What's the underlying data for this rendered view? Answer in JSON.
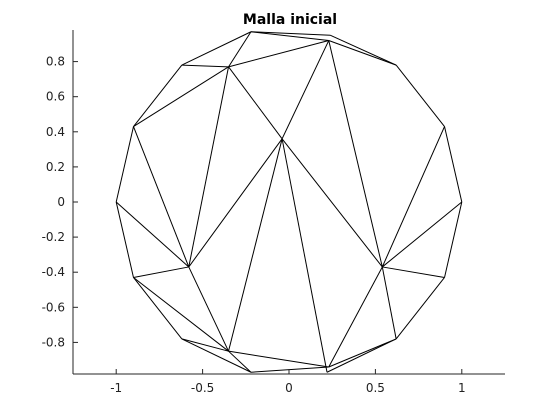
{
  "chart_data": {
    "type": "line",
    "title": "Malla inicial",
    "xlabel": "",
    "ylabel": "",
    "xlim": [
      -1.25,
      1.25
    ],
    "ylim": [
      -0.98,
      0.98
    ],
    "grid": false,
    "legend": "none",
    "line_color": "#000000",
    "x_ticks": [
      -1,
      -0.5,
      0,
      0.5,
      1
    ],
    "x_tick_labels": [
      "-1",
      "-0.5",
      "0",
      "0.5",
      "1"
    ],
    "y_ticks": [
      0.8,
      0.6,
      0.4,
      0.2,
      0,
      -0.2,
      -0.4,
      -0.6,
      -0.8
    ],
    "y_tick_labels": [
      "0.8",
      "0.6",
      "0.4",
      "0.2",
      "0",
      "-0.2",
      "-0.4",
      "-0.6",
      "-0.8"
    ],
    "nodes": [
      {
        "id": "a",
        "x": -0.22,
        "y": 0.97
      },
      {
        "id": "b",
        "x": 0.23,
        "y": 0.92
      },
      {
        "id": "c",
        "x": 0.62,
        "y": 0.78
      },
      {
        "id": "d",
        "x": 0.9,
        "y": 0.43
      },
      {
        "id": "e",
        "x": 1.0,
        "y": 0.0
      },
      {
        "id": "f",
        "x": 0.9,
        "y": -0.43
      },
      {
        "id": "g",
        "x": 0.62,
        "y": -0.78
      },
      {
        "id": "h",
        "x": 0.22,
        "y": -0.97
      },
      {
        "id": "i",
        "x": -0.22,
        "y": -0.97
      },
      {
        "id": "j",
        "x": -0.62,
        "y": -0.78
      },
      {
        "id": "k",
        "x": -0.9,
        "y": -0.43
      },
      {
        "id": "l",
        "x": -1.0,
        "y": 0.0
      },
      {
        "id": "m",
        "x": -0.9,
        "y": 0.43
      },
      {
        "id": "n",
        "x": -0.62,
        "y": 0.78
      },
      {
        "id": "o",
        "x": 0.24,
        "y": 0.95
      },
      {
        "id": "p",
        "x": 0.23,
        "y": -0.94
      },
      {
        "id": "q",
        "x": -0.35,
        "y": 0.77
      },
      {
        "id": "r",
        "x": -0.58,
        "y": -0.37
      },
      {
        "id": "s",
        "x": -0.35,
        "y": -0.85
      },
      {
        "id": "t",
        "x": 0.54,
        "y": -0.37
      },
      {
        "id": "u",
        "x": -0.04,
        "y": 0.36
      }
    ],
    "edges": [
      [
        "a",
        "b"
      ],
      [
        "b",
        "c"
      ],
      [
        "c",
        "d"
      ],
      [
        "d",
        "e"
      ],
      [
        "e",
        "f"
      ],
      [
        "f",
        "g"
      ],
      [
        "g",
        "h"
      ],
      [
        "i",
        "j"
      ],
      [
        "j",
        "k"
      ],
      [
        "k",
        "l"
      ],
      [
        "l",
        "m"
      ],
      [
        "m",
        "n"
      ],
      [
        "n",
        "a"
      ],
      [
        "a",
        "o"
      ],
      [
        "o",
        "c"
      ],
      [
        "g",
        "p"
      ],
      [
        "p",
        "i"
      ],
      [
        "a",
        "q"
      ],
      [
        "n",
        "q"
      ],
      [
        "m",
        "q"
      ],
      [
        "q",
        "b"
      ],
      [
        "q",
        "u"
      ],
      [
        "q",
        "r"
      ],
      [
        "m",
        "r"
      ],
      [
        "l",
        "r"
      ],
      [
        "k",
        "r"
      ],
      [
        "r",
        "s"
      ],
      [
        "k",
        "s"
      ],
      [
        "j",
        "s"
      ],
      [
        "i",
        "s"
      ],
      [
        "s",
        "p"
      ],
      [
        "s",
        "u"
      ],
      [
        "r",
        "u"
      ],
      [
        "u",
        "h"
      ],
      [
        "u",
        "b"
      ],
      [
        "u",
        "t"
      ],
      [
        "b",
        "t"
      ],
      [
        "d",
        "t"
      ],
      [
        "e",
        "t"
      ],
      [
        "f",
        "t"
      ],
      [
        "t",
        "p"
      ],
      [
        "t",
        "g"
      ]
    ]
  }
}
